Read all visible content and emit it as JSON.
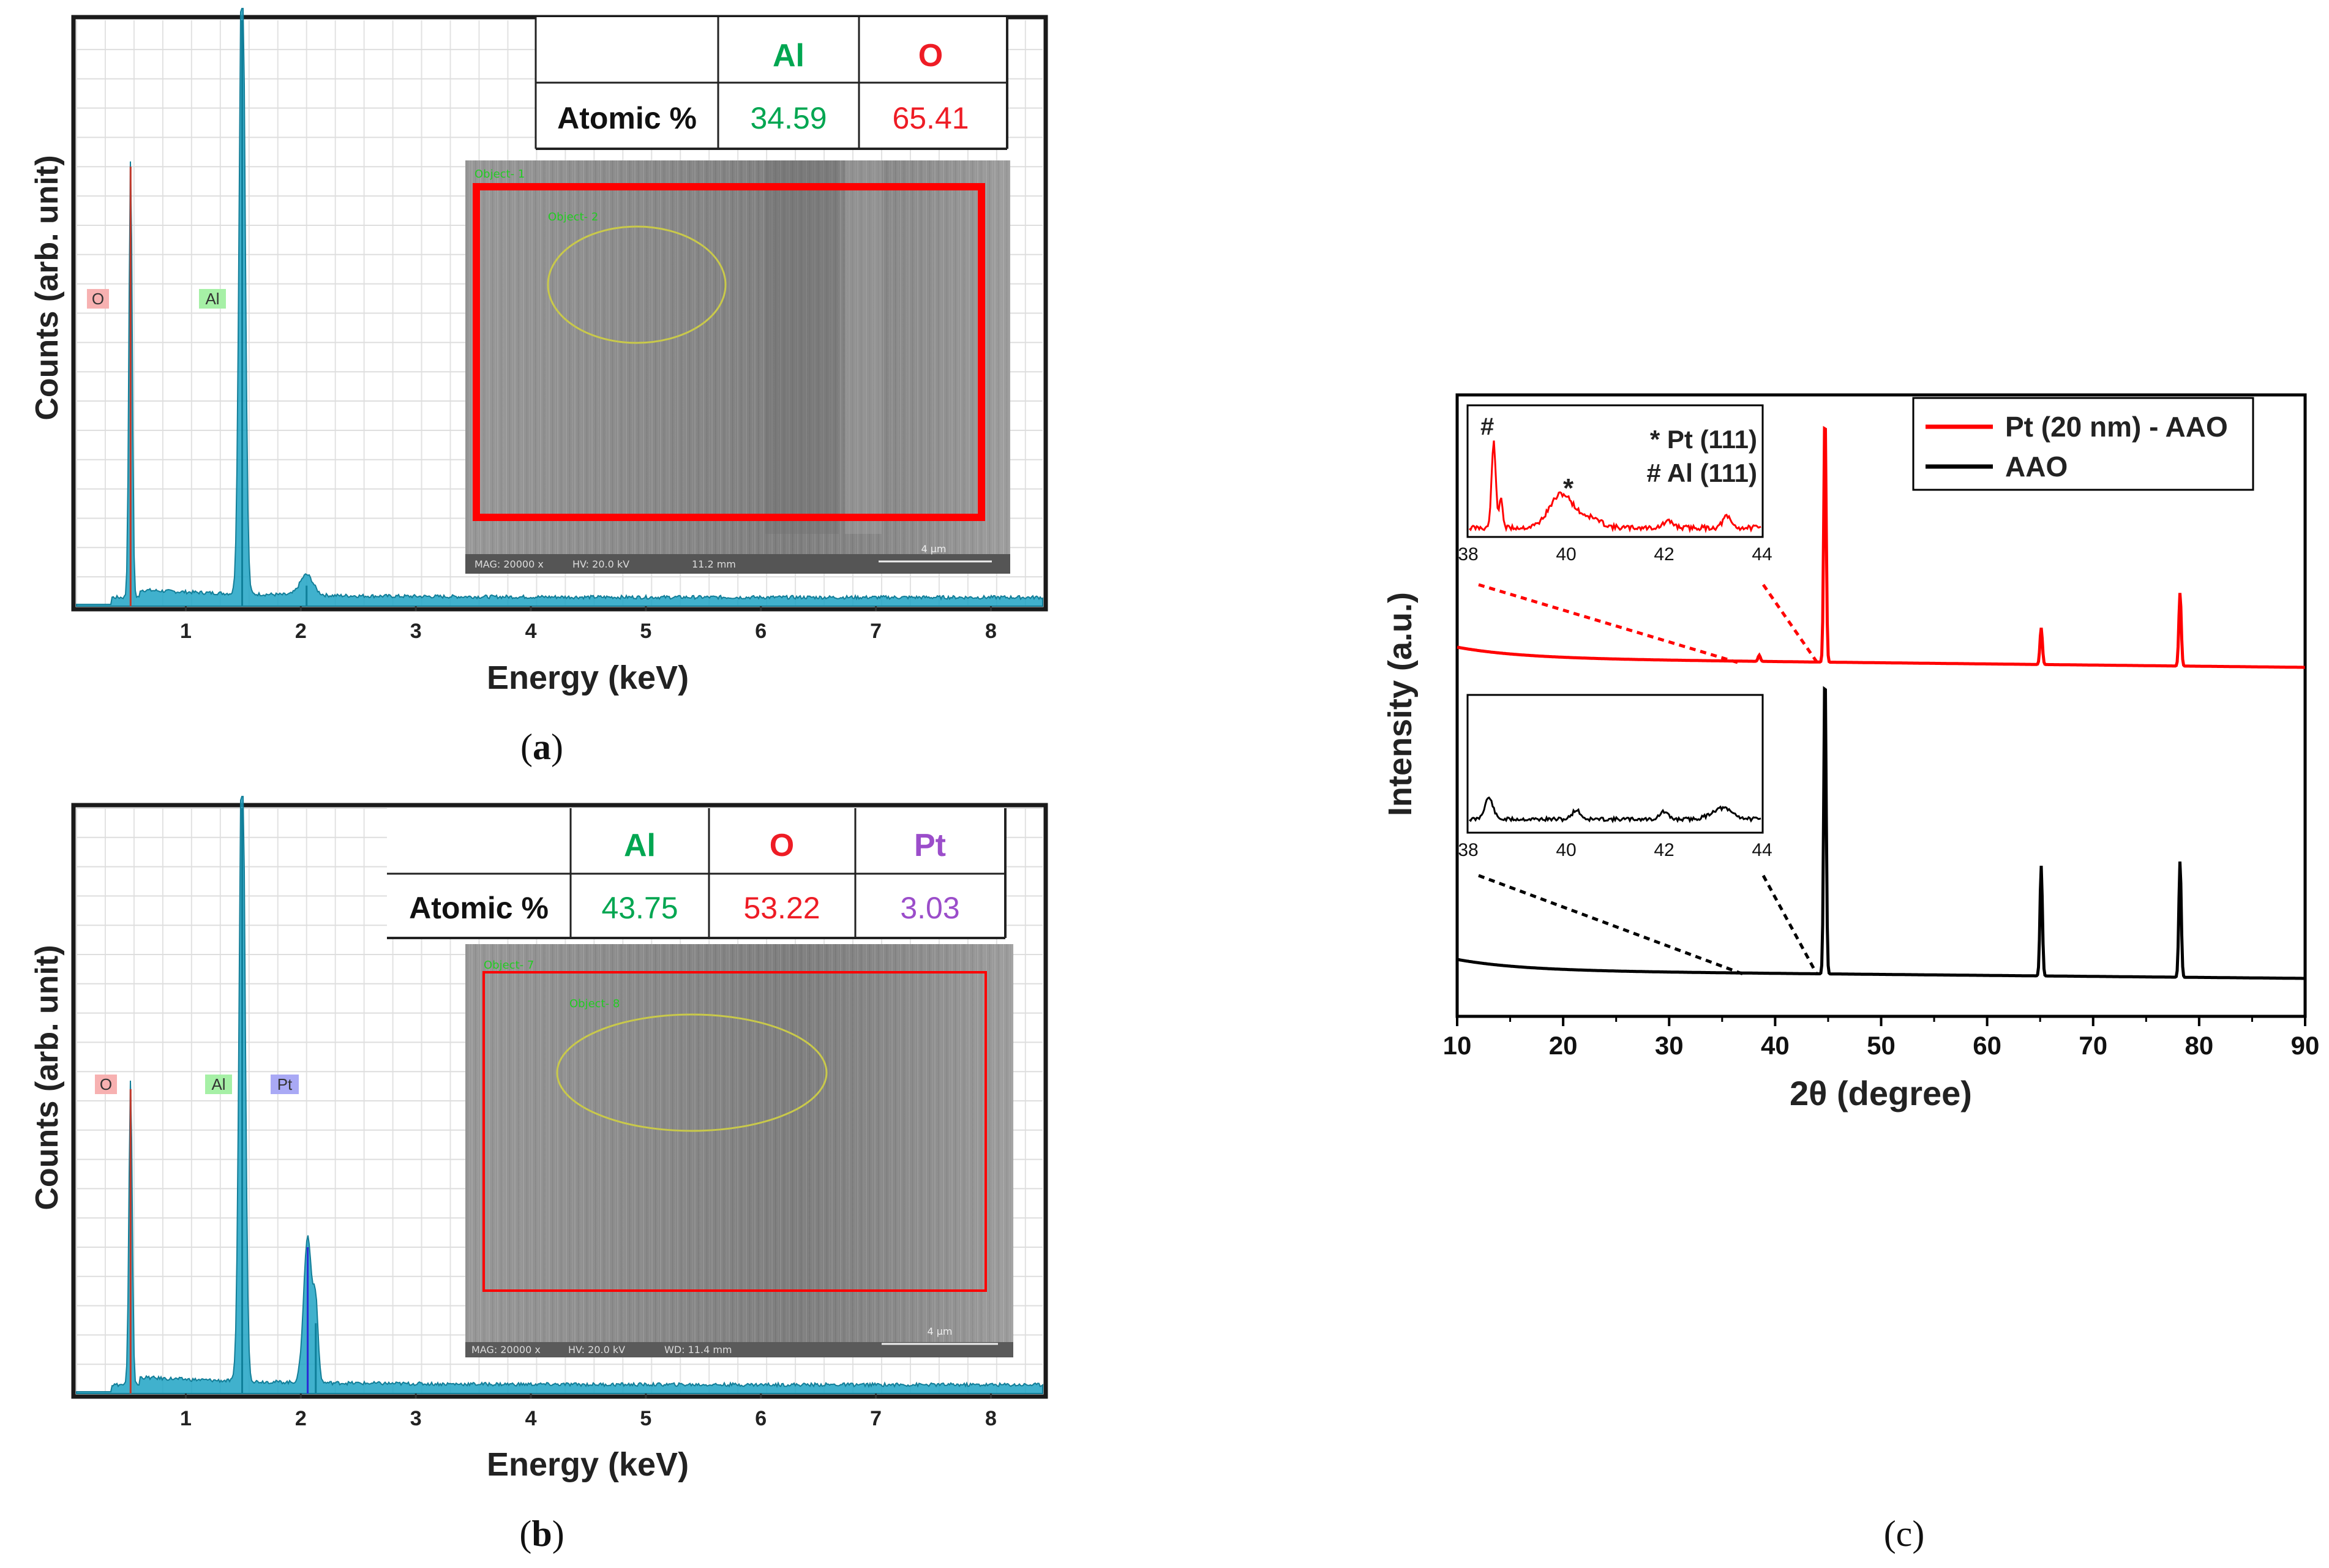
{
  "colors": {
    "al": "#00a651",
    "o": "#ee1c25",
    "pt": "#9b4dca",
    "spec": "#1497b8",
    "red": "#ff0000",
    "blue": "#0000ff",
    "orange": "#f7941d"
  },
  "panel_a": {
    "caption_open": "(",
    "caption_letter": "a",
    "caption_close": ")",
    "table": {
      "headers": [
        "Al",
        "O"
      ],
      "row_label": "Atomic %",
      "values": [
        "34.59",
        "65.41"
      ]
    },
    "sem": {
      "obj1": "Object- 1",
      "obj2": "Object- 2",
      "scale": "4 μm",
      "footer": [
        "MAG: 20000 x",
        "HV: 20.0 kV",
        "11.2 mm"
      ]
    }
  },
  "panel_b": {
    "caption_open": "(",
    "caption_letter": "b",
    "caption_close": ")",
    "table": {
      "headers": [
        "Al",
        "O",
        "Pt"
      ],
      "row_label": "Atomic %",
      "values": [
        "43.75",
        "53.22",
        "3.03"
      ]
    },
    "sem": {
      "obj1": "Object- 7",
      "obj2": "Object- 8",
      "scale": "4 μm",
      "footer": [
        "MAG: 20000 x",
        "HV: 20.0 kV",
        "WD: 11.4 mm"
      ]
    }
  },
  "panel_c": {
    "caption": "(c)"
  },
  "chart_data": [
    {
      "type": "line",
      "title": "",
      "xlabel": "Energy (keV)",
      "ylabel": "Counts (arb. unit)",
      "xlim": [
        0.05,
        8.45
      ],
      "ylim": [
        0,
        1.0
      ],
      "xticks": [
        "1",
        "2",
        "3",
        "4",
        "5",
        "6",
        "7",
        "8"
      ],
      "peaks": [
        {
          "energy": 0.52,
          "height": 0.75,
          "width": 0.02,
          "label": "O"
        },
        {
          "energy": 1.49,
          "height": 1.15,
          "width": 0.035,
          "label": "Al"
        },
        {
          "energy": 2.05,
          "height": 0.035,
          "width": 0.08,
          "label": ""
        }
      ],
      "peak_labels": [
        "O",
        "Al"
      ]
    },
    {
      "type": "line",
      "title": "",
      "xlabel": "Energy (keV)",
      "ylabel": "Counts (arb. unit)",
      "xlim": [
        0.05,
        8.45
      ],
      "ylim": [
        0,
        1.0
      ],
      "xticks": [
        "1",
        "2",
        "3",
        "4",
        "5",
        "6",
        "7",
        "8"
      ],
      "peaks": [
        {
          "energy": 0.52,
          "height": 0.52,
          "width": 0.02,
          "label": "O"
        },
        {
          "energy": 1.49,
          "height": 1.15,
          "width": 0.035,
          "label": "Al"
        },
        {
          "energy": 2.06,
          "height": 0.25,
          "width": 0.05,
          "label": "Pt"
        },
        {
          "energy": 2.13,
          "height": 0.12,
          "width": 0.03,
          "label": ""
        }
      ],
      "peak_labels": [
        "O",
        "Al",
        "Pt"
      ]
    },
    {
      "type": "line",
      "title": "",
      "xlabel": "2θ (degree)",
      "ylabel": "Intensity (a.u.)",
      "xlim": [
        10,
        90
      ],
      "ylim": [
        0,
        1.0
      ],
      "xticks": [
        "10",
        "20",
        "30",
        "40",
        "50",
        "60",
        "70",
        "80",
        "90"
      ],
      "legend": [
        "Pt (20 nm) - AAO",
        "AAO"
      ],
      "series": [
        {
          "name": "Pt (20 nm) - AAO",
          "color": "red",
          "peaks": [
            {
              "x": 38.5,
              "h": 0.01
            },
            {
              "x": 44.7,
              "h": 0.41
            },
            {
              "x": 65.1,
              "h": 0.06
            },
            {
              "x": 78.2,
              "h": 0.12
            }
          ]
        },
        {
          "name": "AAO",
          "color": "black",
          "peaks": [
            {
              "x": 44.7,
              "h": 0.5
            },
            {
              "x": 65.1,
              "h": 0.18
            },
            {
              "x": 78.2,
              "h": 0.19
            }
          ]
        }
      ],
      "inset_top": {
        "xticks": [
          "38",
          "40",
          "42",
          "44"
        ],
        "hash": "#",
        "star": "*",
        "label_pt": "* Pt (111)",
        "label_al": "# Al (111)"
      },
      "inset_bottom": {
        "xticks": [
          "38",
          "40",
          "42",
          "44"
        ]
      }
    }
  ]
}
